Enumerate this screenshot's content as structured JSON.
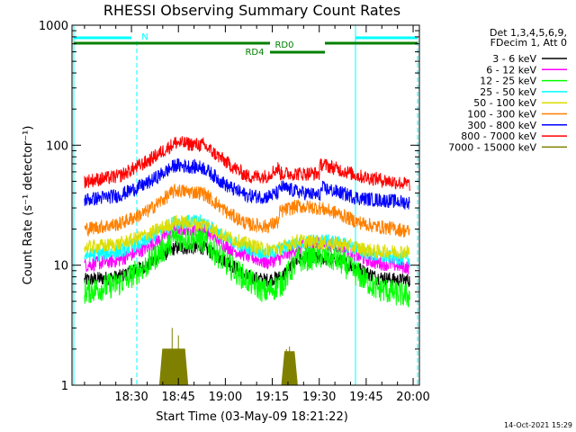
{
  "chart_data": {
    "type": "line",
    "title": "RHESSI Observing Summary Count Rates",
    "xlabel": "Start Time (03-May-09 18:21:22)",
    "ylabel": "Count Rate (s⁻¹ detector⁻¹)",
    "yscale": "log",
    "ylim": [
      1,
      1000
    ],
    "xlim_minutes": [
      18.37,
      19.97
    ],
    "x_ticks": [
      "18:30",
      "18:45",
      "19:00",
      "19:15",
      "19:30",
      "19:45",
      "20:00"
    ],
    "x_tick_minutes": [
      19,
      34,
      49,
      64,
      79,
      94,
      109
    ],
    "y_ticks": [
      "1",
      "10",
      "100",
      "1000"
    ],
    "y_tick_values": [
      1,
      10,
      100,
      1000
    ],
    "legend": {
      "header_line1": "Det 1,3,4,5,6,9,",
      "header_line2": "FDecim 1, Att 0",
      "position": "right"
    },
    "series": [
      {
        "name": "3 - 6 keV",
        "color": "#000000",
        "x": [
          4,
          15,
          24,
          33,
          42,
          50,
          56,
          62,
          67,
          72,
          79,
          85,
          91,
          97,
          104,
          108
        ],
        "y": [
          7.5,
          8,
          10,
          14,
          14,
          10.5,
          8,
          7.5,
          8,
          11,
          11.5,
          11,
          9.5,
          8,
          7.5,
          7.5
        ]
      },
      {
        "name": "6 - 12 keV",
        "color": "#ff00ff",
        "x": [
          4,
          15,
          24,
          33,
          42,
          50,
          56,
          62,
          67,
          72,
          79,
          85,
          91,
          97,
          104,
          108
        ],
        "y": [
          10,
          11,
          14,
          20,
          20,
          14,
          12,
          10.5,
          11.5,
          14,
          15,
          14.5,
          12,
          10.5,
          10,
          9.5
        ]
      },
      {
        "name": "12 - 25 keV",
        "color": "#00ff00",
        "x": [
          4,
          15,
          24,
          33,
          42,
          50,
          56,
          62,
          67,
          72,
          79,
          85,
          91,
          97,
          104,
          108
        ],
        "y": [
          6,
          7,
          10,
          17,
          16,
          10,
          7.5,
          6,
          7,
          11,
          12,
          11,
          8.5,
          6.5,
          5.8,
          5.5
        ]
      },
      {
        "name": "25 - 50 keV",
        "color": "#00ffff",
        "x": [
          4,
          15,
          24,
          33,
          42,
          50,
          56,
          62,
          67,
          72,
          79,
          85,
          91,
          97,
          104,
          108
        ],
        "y": [
          12,
          13,
          16,
          23,
          23,
          16,
          14,
          12.5,
          13.5,
          15.5,
          16,
          15.5,
          13.5,
          12,
          11.5,
          11
        ]
      },
      {
        "name": "50 - 100 keV",
        "color": "#dddd00",
        "x": [
          4,
          15,
          24,
          33,
          42,
          50,
          56,
          62,
          67,
          72,
          79,
          85,
          91,
          97,
          104,
          108
        ],
        "y": [
          14,
          15,
          18,
          23,
          22,
          17,
          15,
          13.5,
          14,
          16,
          15.5,
          15,
          14,
          13,
          13,
          13
        ]
      },
      {
        "name": "100 - 300 keV",
        "color": "#ff8000",
        "x": [
          4,
          15,
          24,
          33,
          42,
          50,
          56,
          62,
          66,
          66.5,
          72,
          79,
          85,
          91,
          97,
          104,
          108
        ],
        "y": [
          20,
          22,
          28,
          42,
          40,
          27,
          22,
          21,
          23,
          28,
          31,
          30,
          27,
          23,
          21,
          20,
          19
        ]
      },
      {
        "name": "300 - 800 keV",
        "color": "#0000ff",
        "x": [
          4,
          15,
          24,
          33,
          42,
          50,
          56,
          62,
          66,
          66.5,
          72,
          79,
          80,
          86,
          92,
          98,
          104,
          108
        ],
        "y": [
          35,
          38,
          48,
          68,
          65,
          45,
          38,
          37,
          40,
          45,
          41,
          38,
          44,
          40,
          36,
          35,
          34,
          33
        ]
      },
      {
        "name": "800 - 7000 keV",
        "color": "#ff0000",
        "x": [
          4,
          15,
          24,
          33,
          42,
          50,
          56,
          62,
          66,
          66.5,
          79,
          79.5,
          86,
          92,
          98,
          104,
          108
        ],
        "y": [
          50,
          55,
          73,
          105,
          100,
          70,
          55,
          55,
          65,
          58,
          58,
          70,
          62,
          55,
          52,
          49,
          47
        ]
      },
      {
        "name": "7000 - 15000 keV",
        "color": "#808000",
        "x": [
          28,
          29,
          36,
          37,
          67,
          68,
          71,
          72
        ],
        "y": [
          1,
          2,
          2,
          1,
          1,
          1.9,
          1.9,
          1
        ]
      }
    ]
  },
  "annotations": {
    "rd0_label": "RD0",
    "rd4_label": "RD4",
    "n_label": "N"
  },
  "timestamp": "14-Oct-2021 15:29",
  "colors": {
    "background": "#ffffff",
    "axes": "#000000",
    "marker_lines": "#00ffff",
    "rd_bars": "#008000"
  }
}
